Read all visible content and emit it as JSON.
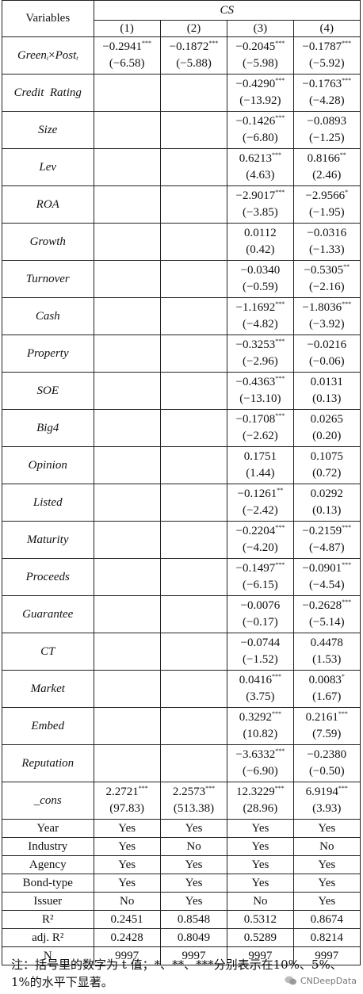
{
  "header": {
    "variables_label": "Variables",
    "group_label": "CS",
    "columns": [
      "(1)",
      "(2)",
      "(3)",
      "(4)"
    ]
  },
  "interaction_label": {
    "a": "Green",
    "a_sub": "i",
    "x": "×",
    "b": "Post",
    "b_sub": "t"
  },
  "rows": [
    {
      "name": "Green_i×Post_t",
      "cells": [
        {
          "c": "−0.2941",
          "s": "***",
          "t": "(−6.58)"
        },
        {
          "c": "−0.1872",
          "s": "***",
          "t": "(−5.88)"
        },
        {
          "c": "−0.2045",
          "s": "***",
          "t": "(−5.98)"
        },
        {
          "c": "−0.1787",
          "s": "***",
          "t": "(−5.92)"
        }
      ]
    },
    {
      "name": "Credit  Rating",
      "cells": [
        {
          "c": "",
          "s": "",
          "t": ""
        },
        {
          "c": "",
          "s": "",
          "t": ""
        },
        {
          "c": "−0.4290",
          "s": "***",
          "t": "(−13.92)"
        },
        {
          "c": "−0.1763",
          "s": "***",
          "t": "(−4.28)"
        }
      ]
    },
    {
      "name": "Size",
      "cells": [
        {
          "c": "",
          "s": "",
          "t": ""
        },
        {
          "c": "",
          "s": "",
          "t": ""
        },
        {
          "c": "−0.1426",
          "s": "***",
          "t": "(−6.80)"
        },
        {
          "c": "−0.0893",
          "s": "",
          "t": "(−1.25)"
        }
      ]
    },
    {
      "name": "Lev",
      "cells": [
        {
          "c": "",
          "s": "",
          "t": ""
        },
        {
          "c": "",
          "s": "",
          "t": ""
        },
        {
          "c": "0.6213",
          "s": "***",
          "t": "(4.63)"
        },
        {
          "c": "0.8166",
          "s": "**",
          "t": "(2.46)"
        }
      ]
    },
    {
      "name": "ROA",
      "cells": [
        {
          "c": "",
          "s": "",
          "t": ""
        },
        {
          "c": "",
          "s": "",
          "t": ""
        },
        {
          "c": "−2.9017",
          "s": "***",
          "t": "(−3.85)"
        },
        {
          "c": "−2.9566",
          "s": "*",
          "t": "(−1.95)"
        }
      ]
    },
    {
      "name": "Growth",
      "cells": [
        {
          "c": "",
          "s": "",
          "t": ""
        },
        {
          "c": "",
          "s": "",
          "t": ""
        },
        {
          "c": "0.0112",
          "s": "",
          "t": "(0.42)"
        },
        {
          "c": "−0.0316",
          "s": "",
          "t": "(−1.33)"
        }
      ]
    },
    {
      "name": "Turnover",
      "cells": [
        {
          "c": "",
          "s": "",
          "t": ""
        },
        {
          "c": "",
          "s": "",
          "t": ""
        },
        {
          "c": "−0.0340",
          "s": "",
          "t": "(−0.59)"
        },
        {
          "c": "−0.5305",
          "s": "**",
          "t": "(−2.16)"
        }
      ]
    },
    {
      "name": "Cash",
      "cells": [
        {
          "c": "",
          "s": "",
          "t": ""
        },
        {
          "c": "",
          "s": "",
          "t": ""
        },
        {
          "c": "−1.1692",
          "s": "***",
          "t": "(−4.82)"
        },
        {
          "c": "−1.8036",
          "s": "***",
          "t": "(−3.92)"
        }
      ]
    },
    {
      "name": "Property",
      "cells": [
        {
          "c": "",
          "s": "",
          "t": ""
        },
        {
          "c": "",
          "s": "",
          "t": ""
        },
        {
          "c": "−0.3253",
          "s": "***",
          "t": "(−2.96)"
        },
        {
          "c": "−0.0216",
          "s": "",
          "t": "(−0.06)"
        }
      ]
    },
    {
      "name": "SOE",
      "cells": [
        {
          "c": "",
          "s": "",
          "t": ""
        },
        {
          "c": "",
          "s": "",
          "t": ""
        },
        {
          "c": "−0.4363",
          "s": "***",
          "t": "(−13.10)"
        },
        {
          "c": "0.0131",
          "s": "",
          "t": "(0.13)"
        }
      ]
    },
    {
      "name": "Big4",
      "cells": [
        {
          "c": "",
          "s": "",
          "t": ""
        },
        {
          "c": "",
          "s": "",
          "t": ""
        },
        {
          "c": "−0.1708",
          "s": "***",
          "t": "(−2.62)"
        },
        {
          "c": "0.0265",
          "s": "",
          "t": "(0.20)"
        }
      ]
    },
    {
      "name": "Opinion",
      "cells": [
        {
          "c": "",
          "s": "",
          "t": ""
        },
        {
          "c": "",
          "s": "",
          "t": ""
        },
        {
          "c": "0.1751",
          "s": "",
          "t": "(1.44)"
        },
        {
          "c": "0.1075",
          "s": "",
          "t": "(0.72)"
        }
      ]
    },
    {
      "name": "Listed",
      "cells": [
        {
          "c": "",
          "s": "",
          "t": ""
        },
        {
          "c": "",
          "s": "",
          "t": ""
        },
        {
          "c": "−0.1261",
          "s": "**",
          "t": "(−2.42)"
        },
        {
          "c": "0.0292",
          "s": "",
          "t": "(0.13)"
        }
      ]
    },
    {
      "name": "Maturity",
      "cells": [
        {
          "c": "",
          "s": "",
          "t": ""
        },
        {
          "c": "",
          "s": "",
          "t": ""
        },
        {
          "c": "−0.2204",
          "s": "***",
          "t": "(−4.20)"
        },
        {
          "c": "−0.2159",
          "s": "***",
          "t": "(−4.87)"
        }
      ]
    },
    {
      "name": "Proceeds",
      "cells": [
        {
          "c": "",
          "s": "",
          "t": ""
        },
        {
          "c": "",
          "s": "",
          "t": ""
        },
        {
          "c": "−0.1497",
          "s": "***",
          "t": "(−6.15)"
        },
        {
          "c": "−0.0901",
          "s": "***",
          "t": "(−4.54)"
        }
      ]
    },
    {
      "name": "Guarantee",
      "cells": [
        {
          "c": "",
          "s": "",
          "t": ""
        },
        {
          "c": "",
          "s": "",
          "t": ""
        },
        {
          "c": "−0.0076",
          "s": "",
          "t": "(−0.17)"
        },
        {
          "c": "−0.2628",
          "s": "***",
          "t": "(−5.14)"
        }
      ]
    },
    {
      "name": "CT",
      "cells": [
        {
          "c": "",
          "s": "",
          "t": ""
        },
        {
          "c": "",
          "s": "",
          "t": ""
        },
        {
          "c": "−0.0744",
          "s": "",
          "t": "(−1.52)"
        },
        {
          "c": "0.4478",
          "s": "",
          "t": "(1.53)"
        }
      ]
    },
    {
      "name": "Market",
      "cells": [
        {
          "c": "",
          "s": "",
          "t": ""
        },
        {
          "c": "",
          "s": "",
          "t": ""
        },
        {
          "c": "0.0416",
          "s": "***",
          "t": "(3.75)"
        },
        {
          "c": "0.0083",
          "s": "*",
          "t": "(1.67)"
        }
      ]
    },
    {
      "name": "Embed",
      "cells": [
        {
          "c": "",
          "s": "",
          "t": ""
        },
        {
          "c": "",
          "s": "",
          "t": ""
        },
        {
          "c": "0.3292",
          "s": "***",
          "t": "(10.82)"
        },
        {
          "c": "0.2161",
          "s": "***",
          "t": "(7.59)"
        }
      ]
    },
    {
      "name": "Reputation",
      "cells": [
        {
          "c": "",
          "s": "",
          "t": ""
        },
        {
          "c": "",
          "s": "",
          "t": ""
        },
        {
          "c": "−3.6332",
          "s": "***",
          "t": "(−6.90)"
        },
        {
          "c": "−0.2380",
          "s": "",
          "t": "(−0.50)"
        }
      ]
    },
    {
      "name": "_cons",
      "cells": [
        {
          "c": "2.2721",
          "s": "***",
          "t": "(97.83)"
        },
        {
          "c": "2.2573",
          "s": "***",
          "t": "(513.38)"
        },
        {
          "c": "12.3229",
          "s": "***",
          "t": "(28.96)"
        },
        {
          "c": "6.9194",
          "s": "***",
          "t": "(3.93)"
        }
      ]
    }
  ],
  "controls": [
    {
      "label": "Year",
      "values": [
        "Yes",
        "Yes",
        "Yes",
        "Yes"
      ]
    },
    {
      "label": "Industry",
      "values": [
        "Yes",
        "No",
        "Yes",
        "No"
      ]
    },
    {
      "label": "Agency",
      "values": [
        "Yes",
        "Yes",
        "Yes",
        "Yes"
      ]
    },
    {
      "label": "Bond-type",
      "values": [
        "Yes",
        "Yes",
        "Yes",
        "Yes"
      ]
    },
    {
      "label": "Issuer",
      "values": [
        "No",
        "Yes",
        "No",
        "Yes"
      ]
    },
    {
      "label": "R²",
      "values": [
        "0.2451",
        "0.8548",
        "0.5312",
        "0.8674"
      ]
    },
    {
      "label": "adj. R²",
      "values": [
        "0.2428",
        "0.8049",
        "0.5289",
        "0.8214"
      ]
    },
    {
      "label": "N",
      "values": [
        "9997",
        "9997",
        "9997",
        "9997"
      ]
    }
  ],
  "note": "注：括号里的数字为 t 值；*、**、***分别表示在10%、5%、1%的水平下显著。",
  "watermark": "CNDeepData"
}
